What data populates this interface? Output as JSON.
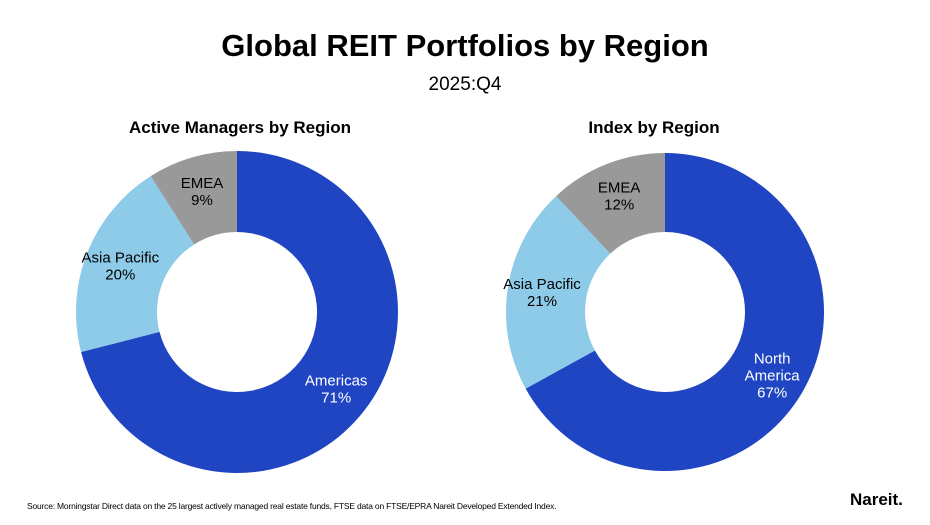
{
  "title": "Global REIT Portfolios by Region",
  "subtitle": "2025:Q4",
  "chart_data": [
    {
      "type": "pie",
      "title": "Active Managers by Region",
      "categories": [
        "Americas",
        "Asia Pacific",
        "EMEA"
      ],
      "values": [
        71,
        20,
        9
      ],
      "labels": [
        "71%",
        "20%",
        "9%"
      ],
      "colors": [
        "#1f45c2",
        "#8ecbe8",
        "#999999"
      ],
      "donut": true
    },
    {
      "type": "pie",
      "title": "Index by Region",
      "categories": [
        "North America",
        "Asia Pacific",
        "EMEA"
      ],
      "values": [
        67,
        21,
        12
      ],
      "labels": [
        "67%",
        "21%",
        "12%"
      ],
      "colors": [
        "#1f45c2",
        "#8ecbe8",
        "#999999"
      ],
      "donut": true
    }
  ],
  "source": "Source: Morningstar Direct data on the 25 largest actively managed real estate funds, FTSE data on FTSE/EPRA Nareit Developed Extended Index.",
  "logo": "Nareit."
}
